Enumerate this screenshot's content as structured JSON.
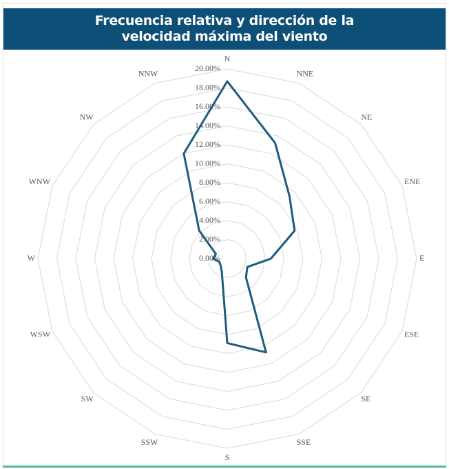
{
  "chart_data": {
    "type": "radar",
    "title": "Frecuencia relativa y dirección de la velocidad máxima del viento",
    "categories": [
      "N",
      "NNE",
      "NE",
      "ENE",
      "E",
      "ESE",
      "SE",
      "SSE",
      "S",
      "SSW",
      "SW",
      "WSW",
      "W",
      "WNW",
      "NW",
      "NNW"
    ],
    "values": [
      18.7,
      13.2,
      9.3,
      7.7,
      4.6,
      2.3,
      2.8,
      10.7,
      8.9,
      1.5,
      1.0,
      0.9,
      1.5,
      1.3,
      4.2,
      12.0
    ],
    "color": "#1d5c7e",
    "ylim": [
      0,
      20
    ],
    "yticks": [
      {
        "value": 0,
        "label": "0.00%"
      },
      {
        "value": 2,
        "label": "2.00%"
      },
      {
        "value": 4,
        "label": "4.00%"
      },
      {
        "value": 6,
        "label": "6.00%"
      },
      {
        "value": 8,
        "label": "8.00%"
      },
      {
        "value": 10,
        "label": "10.00%"
      },
      {
        "value": 12,
        "label": "12.00%"
      },
      {
        "value": 14,
        "label": "14.00%"
      },
      {
        "value": 16,
        "label": "16.00%"
      },
      {
        "value": 18,
        "label": "18.00%"
      },
      {
        "value": 20,
        "label": "20.00%"
      }
    ],
    "grid": true
  }
}
